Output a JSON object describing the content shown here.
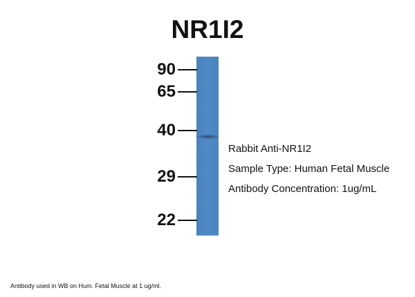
{
  "title": "NR1I2",
  "markers": [
    "90",
    "65",
    "40",
    "29",
    "22"
  ],
  "info": [
    "Rabbit Anti-NR1I2",
    "Sample Type: Human Fetal Muscle",
    "Antibody Concentration: 1ug/mL"
  ],
  "caption": "Antibody used in WB on Hum. Fetal Muscle at 1 ug/ml.",
  "colors": {
    "lane": "#4f89c5",
    "band": "#2c3f60"
  }
}
